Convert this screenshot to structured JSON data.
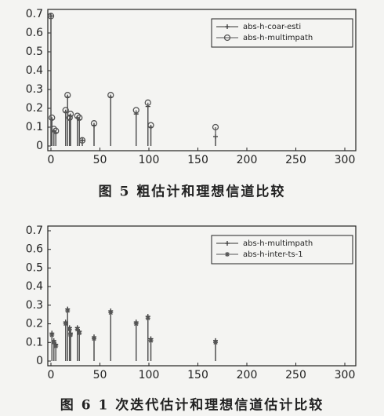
{
  "chart_data": [
    {
      "type": "stem",
      "caption": "图 5   粗估计和理想信道比较",
      "x": [
        0,
        1,
        3,
        5,
        15,
        17,
        19,
        20,
        27,
        29,
        32,
        44,
        61,
        87,
        99,
        102,
        168
      ],
      "series": [
        {
          "name": "abs-h-coar-esti",
          "color": "#333333",
          "marker": "plus",
          "values": [
            0.69,
            0.14,
            0.08,
            0.07,
            0.18,
            0.26,
            0.14,
            0.16,
            0.15,
            0.14,
            0.03,
            0.11,
            0.26,
            0.17,
            0.21,
            0.1,
            0.05
          ]
        },
        {
          "name": "abs-h-multimpath",
          "color": "#555555",
          "marker": "circle",
          "values": [
            0.69,
            0.15,
            0.09,
            0.08,
            0.19,
            0.27,
            0.15,
            0.17,
            0.16,
            0.15,
            0.03,
            0.12,
            0.27,
            0.19,
            0.23,
            0.11,
            0.1
          ]
        }
      ],
      "xlim": [
        0,
        300
      ],
      "xticks": [
        0,
        50,
        100,
        150,
        200,
        250,
        300
      ],
      "ylim": [
        0,
        0.7
      ],
      "yticks": [
        0,
        0.1,
        0.2,
        0.3,
        0.4,
        0.5,
        0.6,
        0.7
      ],
      "legend": "upper right"
    },
    {
      "type": "stem",
      "caption": "图 6   1 次迭代估计和理想信道估计比较",
      "x": [
        1,
        3,
        5,
        15,
        17,
        19,
        20,
        27,
        29,
        44,
        61,
        87,
        99,
        102,
        168
      ],
      "series": [
        {
          "name": "abs-h-multimpath",
          "color": "#333333",
          "marker": "plus",
          "values": [
            0.15,
            0.11,
            0.09,
            0.21,
            0.28,
            0.18,
            0.15,
            0.18,
            0.16,
            0.13,
            0.27,
            0.21,
            0.24,
            0.12,
            0.11
          ]
        },
        {
          "name": "abs-h-inter-ts-1",
          "color": "#555555",
          "marker": "star",
          "values": [
            0.14,
            0.1,
            0.08,
            0.2,
            0.27,
            0.17,
            0.14,
            0.17,
            0.15,
            0.12,
            0.26,
            0.2,
            0.23,
            0.11,
            0.1
          ]
        }
      ],
      "xlim": [
        0,
        300
      ],
      "xticks": [
        0,
        50,
        100,
        150,
        200,
        250,
        300
      ],
      "ylim": [
        0,
        0.7
      ],
      "yticks": [
        0,
        0.1,
        0.2,
        0.3,
        0.4,
        0.5,
        0.6,
        0.7
      ],
      "legend": "upper right"
    }
  ]
}
